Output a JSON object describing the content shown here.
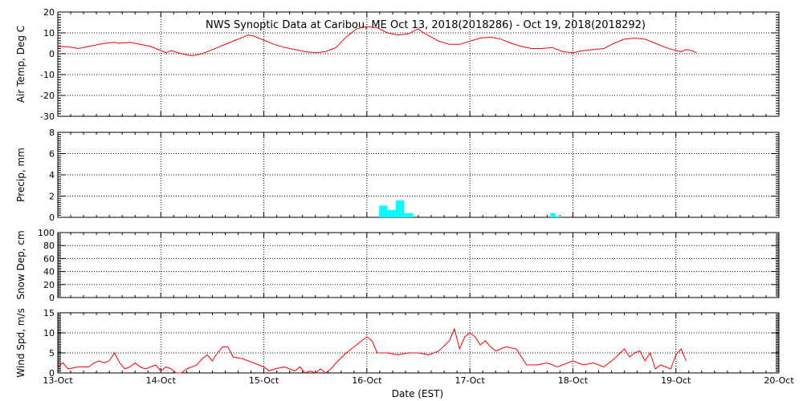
{
  "title": "NWS Synoptic Data at Caribou, ME   Oct 13, 2018(2018286) - Oct 19, 2018(2018292)",
  "xlabel": "Date (EST)",
  "x_tick_labels": [
    "13-Oct",
    "14-Oct",
    "15-Oct",
    "16-Oct",
    "17-Oct",
    "18-Oct",
    "19-Oct",
    "20-Oct"
  ],
  "colors": {
    "line": "#ff0000",
    "precip": "#00ffff",
    "axes": "#000000",
    "grid": "#000000"
  },
  "chart_data": [
    {
      "type": "line",
      "ylabel": "Air Temp, Deg C",
      "ylim": [
        -30,
        20
      ],
      "yticks": [
        -30,
        -20,
        -10,
        0,
        10,
        20
      ],
      "xlim": [
        0,
        7
      ],
      "x_unit": "days since 13-Oct 00:00 EST",
      "grid": true,
      "series": [
        {
          "values": [
            [
              0,
              3.5
            ],
            [
              0.1,
              3.3
            ],
            [
              0.2,
              2.5
            ],
            [
              0.3,
              3.5
            ],
            [
              0.4,
              4.5
            ],
            [
              0.45,
              5
            ],
            [
              0.55,
              5.5
            ],
            [
              0.6,
              5
            ],
            [
              0.7,
              5.5
            ],
            [
              0.8,
              4.5
            ],
            [
              0.9,
              3.5
            ],
            [
              1.0,
              1.5
            ],
            [
              1.05,
              0.5
            ],
            [
              1.1,
              1.5
            ],
            [
              1.2,
              0
            ],
            [
              1.3,
              -1
            ],
            [
              1.4,
              0
            ],
            [
              1.5,
              2
            ],
            [
              1.6,
              4
            ],
            [
              1.7,
              6
            ],
            [
              1.8,
              8
            ],
            [
              1.85,
              9
            ],
            [
              1.9,
              8.5
            ],
            [
              2.0,
              6.5
            ],
            [
              2.1,
              4.5
            ],
            [
              2.2,
              3
            ],
            [
              2.3,
              2
            ],
            [
              2.4,
              1
            ],
            [
              2.5,
              0.5
            ],
            [
              2.6,
              1
            ],
            [
              2.7,
              3
            ],
            [
              2.8,
              8
            ],
            [
              2.9,
              12
            ],
            [
              3.0,
              13
            ],
            [
              3.1,
              12.5
            ],
            [
              3.2,
              10
            ],
            [
              3.3,
              9
            ],
            [
              3.4,
              9.5
            ],
            [
              3.5,
              12
            ],
            [
              3.55,
              10
            ],
            [
              3.7,
              6
            ],
            [
              3.8,
              4.5
            ],
            [
              3.9,
              4.5
            ],
            [
              4.0,
              6
            ],
            [
              4.1,
              7.5
            ],
            [
              4.2,
              8
            ],
            [
              4.3,
              7
            ],
            [
              4.4,
              5
            ],
            [
              4.5,
              3.5
            ],
            [
              4.6,
              2.5
            ],
            [
              4.7,
              2.5
            ],
            [
              4.8,
              3
            ],
            [
              4.9,
              1
            ],
            [
              5.0,
              0.5
            ],
            [
              5.1,
              1.5
            ],
            [
              5.2,
              2
            ],
            [
              5.3,
              2.5
            ],
            [
              5.4,
              5
            ],
            [
              5.5,
              7
            ],
            [
              5.6,
              7.5
            ],
            [
              5.7,
              7
            ],
            [
              5.8,
              5
            ],
            [
              5.9,
              3
            ],
            [
              6.0,
              1.5
            ],
            [
              6.05,
              1
            ],
            [
              6.1,
              2
            ],
            [
              6.15,
              1.5
            ],
            [
              6.2,
              0.5
            ]
          ]
        }
      ]
    },
    {
      "type": "bar",
      "ylabel": "Precip, mm",
      "ylim": [
        0,
        8
      ],
      "yticks": [
        0,
        2,
        4,
        6,
        8
      ],
      "xlim": [
        0,
        7
      ],
      "x_unit": "days since 13-Oct 00:00 EST",
      "grid": true,
      "bars": [
        {
          "x0": 3.12,
          "x1": 3.2,
          "value": 1.1
        },
        {
          "x0": 3.2,
          "x1": 3.28,
          "value": 0.7
        },
        {
          "x0": 3.28,
          "x1": 3.36,
          "value": 1.6
        },
        {
          "x0": 3.36,
          "x1": 3.45,
          "value": 0.4
        },
        {
          "x0": 4.78,
          "x1": 4.83,
          "value": 0.4
        },
        {
          "x0": 4.83,
          "x1": 4.88,
          "value": 0.1
        }
      ]
    },
    {
      "type": "line",
      "ylabel": "Snow Dep, cm",
      "ylim": [
        0,
        100
      ],
      "yticks": [
        0,
        20,
        40,
        60,
        80,
        100
      ],
      "xlim": [
        0,
        7
      ],
      "grid": true,
      "series": []
    },
    {
      "type": "line",
      "ylabel": "Wind Spd, m/s",
      "ylim": [
        0,
        15
      ],
      "yticks": [
        0,
        5,
        10,
        15
      ],
      "xlim": [
        0,
        7
      ],
      "x_unit": "days since 13-Oct 00:00 EST",
      "grid": true,
      "series": [
        {
          "values": [
            [
              0,
              1.5
            ],
            [
              0.05,
              2.5
            ],
            [
              0.1,
              1
            ],
            [
              0.2,
              1.5
            ],
            [
              0.3,
              1.5
            ],
            [
              0.35,
              2.5
            ],
            [
              0.4,
              3
            ],
            [
              0.45,
              2.5
            ],
            [
              0.5,
              3
            ],
            [
              0.55,
              5
            ],
            [
              0.6,
              2.5
            ],
            [
              0.65,
              1
            ],
            [
              0.7,
              1.5
            ],
            [
              0.75,
              2.5
            ],
            [
              0.8,
              1.5
            ],
            [
              0.85,
              1
            ],
            [
              0.9,
              1.5
            ],
            [
              0.95,
              2
            ],
            [
              1.0,
              0.5
            ],
            [
              1.05,
              1.5
            ],
            [
              1.1,
              1
            ],
            [
              1.15,
              0
            ],
            [
              1.2,
              0
            ],
            [
              1.25,
              1
            ],
            [
              1.3,
              1.5
            ],
            [
              1.35,
              2
            ],
            [
              1.4,
              3.5
            ],
            [
              1.45,
              4.5
            ],
            [
              1.5,
              3
            ],
            [
              1.55,
              5
            ],
            [
              1.6,
              6.5
            ],
            [
              1.65,
              6.5
            ],
            [
              1.7,
              4
            ],
            [
              1.8,
              3.5
            ],
            [
              1.9,
              2.5
            ],
            [
              2.0,
              1.5
            ],
            [
              2.05,
              0.5
            ],
            [
              2.1,
              1
            ],
            [
              2.2,
              1.5
            ],
            [
              2.3,
              0.5
            ],
            [
              2.35,
              1.5
            ],
            [
              2.4,
              0
            ],
            [
              2.45,
              0.5
            ],
            [
              2.5,
              0
            ],
            [
              2.55,
              1
            ],
            [
              2.6,
              0
            ],
            [
              2.65,
              1
            ],
            [
              2.7,
              2.5
            ],
            [
              2.8,
              5
            ],
            [
              2.9,
              7
            ],
            [
              3.0,
              9
            ],
            [
              3.05,
              8
            ],
            [
              3.1,
              5
            ],
            [
              3.2,
              5
            ],
            [
              3.3,
              4.5
            ],
            [
              3.4,
              5
            ],
            [
              3.5,
              5
            ],
            [
              3.6,
              4.5
            ],
            [
              3.7,
              5.5
            ],
            [
              3.8,
              8
            ],
            [
              3.85,
              11
            ],
            [
              3.9,
              6
            ],
            [
              3.95,
              9
            ],
            [
              4.0,
              10
            ],
            [
              4.05,
              9
            ],
            [
              4.1,
              7
            ],
            [
              4.15,
              8
            ],
            [
              4.2,
              6.5
            ],
            [
              4.25,
              5.5
            ],
            [
              4.3,
              6
            ],
            [
              4.35,
              6.5
            ],
            [
              4.45,
              6
            ],
            [
              4.55,
              2
            ],
            [
              4.65,
              2
            ],
            [
              4.75,
              2.5
            ],
            [
              4.85,
              1.5
            ],
            [
              5.0,
              3
            ],
            [
              5.1,
              2
            ],
            [
              5.2,
              2.5
            ],
            [
              5.3,
              1.5
            ],
            [
              5.4,
              3.5
            ],
            [
              5.5,
              6
            ],
            [
              5.55,
              4
            ],
            [
              5.6,
              5
            ],
            [
              5.65,
              5.5
            ],
            [
              5.7,
              3
            ],
            [
              5.75,
              5
            ],
            [
              5.8,
              1
            ],
            [
              5.85,
              2
            ],
            [
              5.9,
              1.5
            ],
            [
              5.95,
              1
            ],
            [
              6.0,
              4.5
            ],
            [
              6.05,
              6
            ],
            [
              6.1,
              3
            ]
          ]
        }
      ]
    }
  ]
}
